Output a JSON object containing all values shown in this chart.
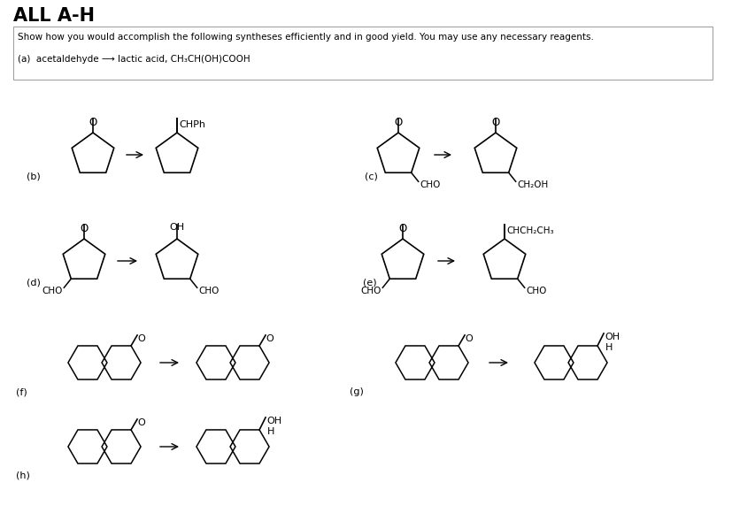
{
  "title": "ALL A-H",
  "subtitle": "Show how you would accomplish the following syntheses efficiently and in good yield. You may use any necessary reagents.",
  "part_a": "(a)  acetaldehyde ⟶ lactic acid, CH₃CH(OH)COOH",
  "bg_color": "#ffffff",
  "text_color": "#000000",
  "title_fontsize": 15,
  "body_fontsize": 8,
  "label_fontsize": 8,
  "fig_width": 8.28,
  "fig_height": 5.8,
  "fig_dpi": 100
}
